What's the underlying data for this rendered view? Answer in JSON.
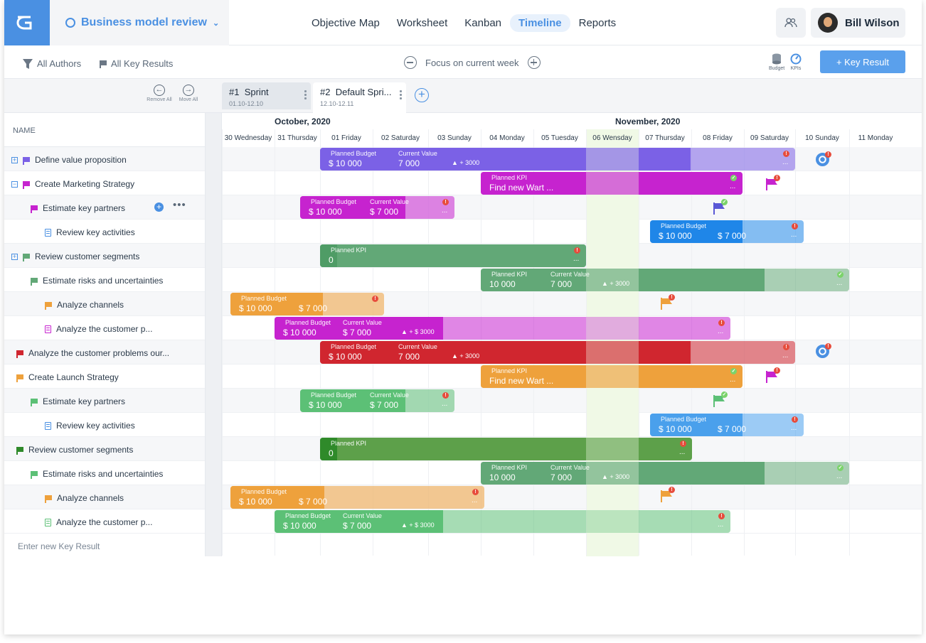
{
  "project": {
    "name": "Business model review"
  },
  "nav": [
    "Objective Map",
    "Worksheet",
    "Kanban",
    "Timeline",
    "Reports"
  ],
  "active_nav": "Timeline",
  "user": {
    "name": "Bill Wilson"
  },
  "filters": {
    "authors": "All Authors",
    "key_results": "All Key Results",
    "focus": "Focus on current week",
    "budget": "Budget",
    "kpis": "KPIs",
    "add_button": "+ Key Result"
  },
  "sprint_controls": {
    "remove": "Remove All",
    "move": "Move All"
  },
  "sprints": [
    {
      "num": "#1",
      "name": "Sprint",
      "dates": "01.10-12.10"
    },
    {
      "num": "#2",
      "name": "Default Spri...",
      "dates": "12.10-12.11"
    }
  ],
  "grid": {
    "name_header": "NAME",
    "enter_new": "Enter new Key Result"
  },
  "months": [
    "October, 2020",
    "November, 2020"
  ],
  "days": [
    "30 Wednesday",
    "31 Thursday",
    "01 Friday",
    "02 Saturday",
    "03 Sunday",
    "04 Monday",
    "05 Tuesday",
    "06 Wensday",
    "07 Thursday",
    "08 Friday",
    "09 Saturday",
    "10 Sunday",
    "11 Monday"
  ],
  "rows": [
    {
      "label": "Define value proposition",
      "tag": "#2",
      "expand": "+"
    },
    {
      "label": "Create Marketing Strategy",
      "tag": "#2",
      "expand": "−"
    },
    {
      "label": "Estimate key partners",
      "tag": ""
    },
    {
      "label": "Review key activities",
      "tag": ""
    },
    {
      "label": "Review customer segments",
      "tag": "",
      "expand": "+"
    },
    {
      "label": "Estimate risks and uncertainties",
      "tag": ""
    },
    {
      "label": "Analyze channels",
      "tag": ""
    },
    {
      "label": "Analyze the customer p...",
      "tag": ""
    },
    {
      "label": "Analyze the customer problems our...",
      "tag": "#1"
    },
    {
      "label": "Create Launch Strategy",
      "tag": "#1"
    },
    {
      "label": "Estimate key partners",
      "tag": ""
    },
    {
      "label": "Review key activities",
      "tag": ""
    },
    {
      "label": "Review customer segments",
      "tag": "#1"
    },
    {
      "label": "Estimate risks and uncertainties",
      "tag": ""
    },
    {
      "label": "Analyze channels",
      "tag": ""
    },
    {
      "label": "Analyze the customer p...",
      "tag": ""
    }
  ],
  "bars": [
    {
      "k1": "Planned Budget",
      "v1": "$ 10 000",
      "k2": "Current Value",
      "v2": "7 000",
      "delta": "▲ + 3000",
      "ellipsis": "..."
    },
    {
      "k1": "Planned KPI",
      "v1": "Find new Wart ...",
      "ellipsis": "..."
    },
    {
      "k1": "Planned Budget",
      "v1": "$ 10 000",
      "k2": "Current Value",
      "v2": "$ 7 000",
      "ellipsis": "..."
    },
    {
      "k1": "Planned Budget",
      "v1": "$ 10 000",
      "v2": "$ 7 000",
      "ellipsis": "..."
    },
    {
      "k1": "Planned KPI",
      "v1": "0",
      "ellipsis": "..."
    },
    {
      "k1": "Planned KPI",
      "v1": "10 000",
      "k2": "Current Value",
      "v2": "7 000",
      "delta": "▲ + 3000",
      "ellipsis": "..."
    },
    {
      "k1": "Planned Budget",
      "v1": "$ 10 000",
      "v2": "$ 7 000"
    },
    {
      "k1": "Planned Budget",
      "v1": "$ 10 000",
      "k2": "Current Value",
      "v2": "$ 7 000",
      "delta": "▲ + $ 3000",
      "ellipsis": "..."
    },
    {
      "k1": "Planned Budget",
      "v1": "$ 10 000",
      "k2": "Current Value",
      "v2": "7 000",
      "delta": "▲ + 3000",
      "ellipsis": "..."
    },
    {
      "k1": "Planned KPI",
      "v1": "Find new Wart ...",
      "ellipsis": "..."
    },
    {
      "k1": "Planned Budget",
      "v1": "$ 10 000",
      "k2": "Current Value",
      "v2": "$ 7 000",
      "ellipsis": "..."
    },
    {
      "k1": "Planned Budget",
      "v1": "$ 10 000",
      "v2": "$ 7 000",
      "ellipsis": "..."
    },
    {
      "k1": "Planned KPI",
      "v1": "0",
      "ellipsis": "..."
    },
    {
      "k1": "Planned KPI",
      "v1": "10 000",
      "k2": "Current Value",
      "v2": "7 000",
      "delta": "▲ + 3000",
      "ellipsis": "..."
    },
    {
      "k1": "Planned Budget",
      "v1": "$ 10 000",
      "v2": "$ 7 000",
      "ellipsis": "..."
    },
    {
      "k1": "Planned Budget",
      "v1": "$ 10 000",
      "k2": "Current Value",
      "v2": "$ 7 000",
      "delta": "▲ + $ 3000",
      "ellipsis": "..."
    }
  ],
  "colors": {
    "accent": "#4a90e2",
    "purple": "#7b61e6",
    "magenta": "#c623cf",
    "blue": "#1f86e8",
    "green": "#62a877",
    "orange": "#eea13c",
    "red": "#d0262f",
    "lightgreen": "#5cc076",
    "darkgreen": "#2f8a2a",
    "today": "#f0f9e6"
  }
}
